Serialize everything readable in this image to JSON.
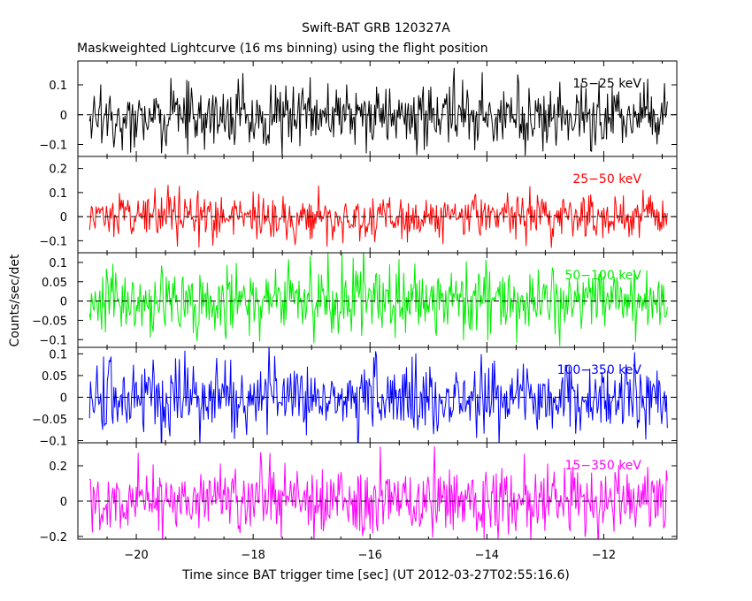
{
  "chart_data": {
    "type": "line",
    "title": "Swift-BAT GRB 120327A",
    "subtitle": "Maskweighted Lightcurve (16 ms binning) using the flight position",
    "xlabel": "Time since BAT trigger time [sec] (UT 2012-03-27T02:55:16.6)",
    "ylabel": "Counts/sec/det",
    "xlim": [
      -21.0,
      -10.75
    ],
    "x_ticks": [
      "−20",
      "−18",
      "−16",
      "−14",
      "−12"
    ],
    "x_tick_values": [
      -20,
      -18,
      -16,
      -14,
      -12
    ],
    "x_range_of_data": [
      -20.8,
      -10.9
    ],
    "bin_width_sec": 0.016,
    "zero_line": "dashed",
    "grid": false,
    "series": [
      {
        "name": "15−25 keV",
        "color": "#000000",
        "ylim": [
          -0.14,
          0.18
        ],
        "y_ticks": [
          "−0.1",
          "0",
          "0.1"
        ],
        "y_tick_values": [
          -0.1,
          0,
          0.1
        ],
        "noise_std": 0.055,
        "mean": 0.0
      },
      {
        "name": "25−50 keV",
        "color": "#ff0000",
        "ylim": [
          -0.15,
          0.25
        ],
        "y_ticks": [
          "−0.1",
          "0",
          "0.1",
          "0.2"
        ],
        "y_tick_values": [
          -0.1,
          0,
          0.1,
          0.2
        ],
        "noise_std": 0.05,
        "mean": 0.0
      },
      {
        "name": "50−100 keV",
        "color": "#00ee00",
        "ylim": [
          -0.12,
          0.125
        ],
        "y_ticks": [
          "−0.1",
          "−0.05",
          "0",
          "0.05",
          "0.1"
        ],
        "y_tick_values": [
          -0.1,
          -0.05,
          0,
          0.05,
          0.1
        ],
        "noise_std": 0.045,
        "mean": 0.0
      },
      {
        "name": "100−350 keV",
        "color": "#0000ff",
        "ylim": [
          -0.105,
          0.115
        ],
        "y_ticks": [
          "−0.1",
          "−0.05",
          "0",
          "0.05",
          "0.1"
        ],
        "y_tick_values": [
          -0.1,
          -0.05,
          0,
          0.05,
          0.1
        ],
        "noise_std": 0.04,
        "mean": 0.0
      },
      {
        "name": "15−350 keV",
        "color": "#ff00ff",
        "ylim": [
          -0.215,
          0.33
        ],
        "y_ticks": [
          "−0.2",
          "0",
          "0.2"
        ],
        "y_tick_values": [
          -0.2,
          0,
          0.2
        ],
        "noise_std": 0.1,
        "mean": 0.0
      }
    ]
  }
}
